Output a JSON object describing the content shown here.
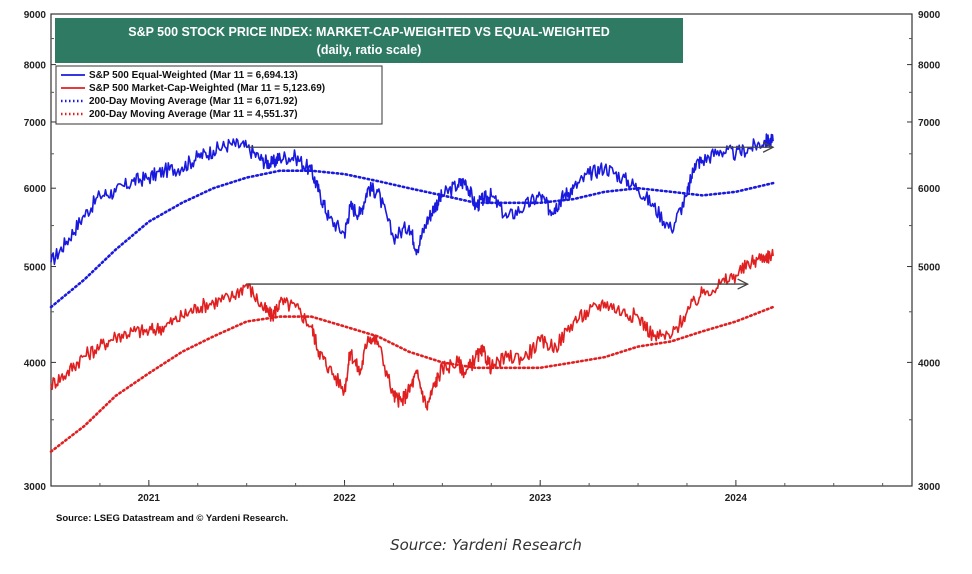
{
  "caption": "Source: Yardeni Research",
  "chart_data": {
    "type": "line",
    "title": "S&P 500 STOCK PRICE INDEX: MARKET-CAP-WEIGHTED VS EQUAL-WEIGHTED",
    "subtitle": "(daily, ratio scale)",
    "source": "Source: LSEG Datastream and © Yardeni Research.",
    "y_scale": "log",
    "ylim": [
      3000,
      9000
    ],
    "xlim": [
      2020.5,
      2024.9
    ],
    "y_ticks": [
      {
        "value": 3000,
        "label": "3000"
      },
      {
        "value": 4000,
        "label": "4000"
      },
      {
        "value": 5000,
        "label": "5000"
      },
      {
        "value": 6000,
        "label": "6000"
      },
      {
        "value": 7000,
        "label": "7000"
      },
      {
        "value": 8000,
        "label": "8000"
      },
      {
        "value": 9000,
        "label": "9000"
      }
    ],
    "x_ticks": [
      {
        "value": 2021.0,
        "label": "2021"
      },
      {
        "value": 2022.0,
        "label": "2022"
      },
      {
        "value": 2023.0,
        "label": "2023"
      },
      {
        "value": 2024.0,
        "label": "2024"
      }
    ],
    "legend_position": "top-left",
    "grid": false,
    "series": [
      {
        "name": "S&P 500 Equal-Weighted (Mar 11 = 6,694.13)",
        "color": "#1a1adf",
        "style": "solid",
        "x": [
          2020.5,
          2020.58,
          2020.66,
          2020.75,
          2020.83,
          2020.92,
          2021.0,
          2021.08,
          2021.17,
          2021.25,
          2021.33,
          2021.42,
          2021.5,
          2021.58,
          2021.63,
          2021.67,
          2021.75,
          2021.83,
          2021.87,
          2021.92,
          2022.0,
          2022.03,
          2022.08,
          2022.12,
          2022.17,
          2022.25,
          2022.33,
          2022.37,
          2022.42,
          2022.46,
          2022.5,
          2022.58,
          2022.62,
          2022.67,
          2022.71,
          2022.75,
          2022.83,
          2022.92,
          2023.0,
          2023.05,
          2023.08,
          2023.12,
          2023.17,
          2023.25,
          2023.33,
          2023.42,
          2023.5,
          2023.58,
          2023.67,
          2023.75,
          2023.79,
          2023.83,
          2023.92,
          2024.0,
          2024.08,
          2024.15,
          2024.19
        ],
        "values": [
          5050,
          5300,
          5600,
          5900,
          5950,
          6100,
          6150,
          6250,
          6300,
          6450,
          6550,
          6650,
          6600,
          6400,
          6350,
          6450,
          6450,
          6250,
          5950,
          5600,
          5400,
          5750,
          5650,
          6000,
          5950,
          5350,
          5500,
          5200,
          5550,
          5750,
          5900,
          6050,
          6100,
          5750,
          5850,
          5900,
          5600,
          5750,
          5900,
          5700,
          5750,
          5900,
          6000,
          6200,
          6300,
          6150,
          6000,
          5750,
          5450,
          5900,
          6350,
          6400,
          6550,
          6500,
          6600,
          6694,
          6694
        ]
      },
      {
        "name": "S&P 500 Market-Cap-Weighted (Mar 11 = 5,123.69)",
        "color": "#e02020",
        "style": "solid",
        "x": [
          2020.5,
          2020.58,
          2020.66,
          2020.75,
          2020.83,
          2020.92,
          2021.0,
          2021.08,
          2021.17,
          2021.25,
          2021.33,
          2021.42,
          2021.5,
          2021.58,
          2021.63,
          2021.67,
          2021.75,
          2021.83,
          2021.87,
          2021.92,
          2022.0,
          2022.03,
          2022.08,
          2022.12,
          2022.17,
          2022.25,
          2022.29,
          2022.33,
          2022.37,
          2022.42,
          2022.46,
          2022.5,
          2022.58,
          2022.62,
          2022.67,
          2022.71,
          2022.75,
          2022.83,
          2022.92,
          2023.0,
          2023.08,
          2023.17,
          2023.25,
          2023.33,
          2023.42,
          2023.5,
          2023.58,
          2023.67,
          2023.75,
          2023.83,
          2023.92,
          2024.0,
          2024.08,
          2024.15,
          2024.19
        ],
        "values": [
          3800,
          3900,
          4050,
          4150,
          4250,
          4300,
          4300,
          4350,
          4450,
          4550,
          4600,
          4650,
          4800,
          4550,
          4450,
          4600,
          4550,
          4350,
          4100,
          3950,
          3750,
          4100,
          3900,
          4250,
          4200,
          3700,
          3650,
          3750,
          3900,
          3600,
          3800,
          3950,
          4000,
          3900,
          4050,
          4100,
          3950,
          4050,
          4050,
          4200,
          4150,
          4400,
          4500,
          4600,
          4500,
          4450,
          4250,
          4250,
          4500,
          4700,
          4800,
          4900,
          5050,
          5124,
          5124
        ]
      },
      {
        "name": "200-Day Moving Average (Mar 11 = 6,071.92)",
        "color": "#1a1adf",
        "style": "dotted",
        "x": [
          2020.5,
          2020.67,
          2020.83,
          2021.0,
          2021.17,
          2021.33,
          2021.5,
          2021.67,
          2021.83,
          2022.0,
          2022.17,
          2022.33,
          2022.5,
          2022.67,
          2022.83,
          2023.0,
          2023.17,
          2023.33,
          2023.5,
          2023.67,
          2023.83,
          2024.0,
          2024.19
        ],
        "values": [
          4550,
          4850,
          5200,
          5550,
          5800,
          6000,
          6150,
          6250,
          6250,
          6200,
          6100,
          6000,
          5900,
          5800,
          5800,
          5800,
          5850,
          5950,
          6000,
          5950,
          5900,
          5950,
          6072
        ]
      },
      {
        "name": "200-Day Moving Average (Mar 11 = 4,551.37)",
        "color": "#e02020",
        "style": "dotted",
        "x": [
          2020.5,
          2020.67,
          2020.83,
          2021.0,
          2021.17,
          2021.33,
          2021.5,
          2021.67,
          2021.83,
          2022.0,
          2022.17,
          2022.33,
          2022.5,
          2022.67,
          2022.83,
          2023.0,
          2023.17,
          2023.33,
          2023.5,
          2023.67,
          2023.83,
          2024.0,
          2024.19
        ],
        "values": [
          3250,
          3450,
          3700,
          3900,
          4100,
          4250,
          4400,
          4450,
          4450,
          4350,
          4250,
          4100,
          4000,
          3950,
          3950,
          3950,
          4000,
          4050,
          4150,
          4200,
          4300,
          4400,
          4551
        ]
      }
    ],
    "annotations": [
      {
        "type": "arrow",
        "color": "#444444",
        "x1": 2021.5,
        "y1": 6600,
        "x2": 2024.19,
        "y2": 6600
      },
      {
        "type": "arrow",
        "color": "#444444",
        "x1": 2021.5,
        "y1": 4800,
        "x2": 2024.06,
        "y2": 4800
      }
    ]
  }
}
